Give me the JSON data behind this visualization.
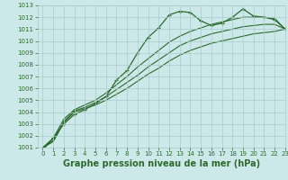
{
  "xlabel": "Graphe pression niveau de la mer (hPa)",
  "x": [
    0,
    1,
    2,
    3,
    4,
    5,
    6,
    7,
    8,
    9,
    10,
    11,
    12,
    13,
    14,
    15,
    16,
    17,
    18,
    19,
    20,
    21,
    22,
    23
  ],
  "line_main": [
    1000.8,
    1001.8,
    1003.0,
    1003.8,
    1004.2,
    1004.7,
    1005.3,
    1006.7,
    1007.5,
    1009.0,
    1010.3,
    1011.1,
    1012.2,
    1012.5,
    1012.4,
    1011.7,
    1011.3,
    1011.5,
    1012.0,
    1012.7,
    1012.1,
    1012.0,
    1011.8,
    1011.0
  ],
  "flat1": [
    1001.0,
    1001.5,
    1003.1,
    1004.0,
    1004.3,
    1004.6,
    1005.0,
    1005.5,
    1006.0,
    1006.6,
    1007.2,
    1007.7,
    1008.3,
    1008.8,
    1009.2,
    1009.5,
    1009.8,
    1010.0,
    1010.2,
    1010.4,
    1010.6,
    1010.7,
    1010.8,
    1011.0
  ],
  "flat2": [
    1001.0,
    1001.6,
    1003.2,
    1004.1,
    1004.4,
    1004.8,
    1005.3,
    1005.9,
    1006.5,
    1007.1,
    1007.8,
    1008.4,
    1009.0,
    1009.6,
    1010.0,
    1010.3,
    1010.6,
    1010.8,
    1011.0,
    1011.2,
    1011.3,
    1011.4,
    1011.4,
    1011.0
  ],
  "flat3": [
    1001.0,
    1001.8,
    1003.4,
    1004.2,
    1004.6,
    1005.0,
    1005.6,
    1006.3,
    1007.0,
    1007.8,
    1008.5,
    1009.2,
    1009.9,
    1010.4,
    1010.8,
    1011.1,
    1011.4,
    1011.6,
    1011.8,
    1012.0,
    1012.0,
    1012.0,
    1011.9,
    1011.0
  ],
  "bg_color": "#cce8e8",
  "grid_color": "#aacccc",
  "line_color": "#2d6a2d",
  "ylim": [
    1001,
    1013
  ],
  "xlim": [
    -0.5,
    23
  ],
  "yticks": [
    1001,
    1002,
    1003,
    1004,
    1005,
    1006,
    1007,
    1008,
    1009,
    1010,
    1011,
    1012,
    1013
  ],
  "xticks": [
    0,
    1,
    2,
    3,
    4,
    5,
    6,
    7,
    8,
    9,
    10,
    11,
    12,
    13,
    14,
    15,
    16,
    17,
    18,
    19,
    20,
    21,
    22,
    23
  ],
  "tick_fontsize": 5.0,
  "xlabel_fontsize": 7.0
}
